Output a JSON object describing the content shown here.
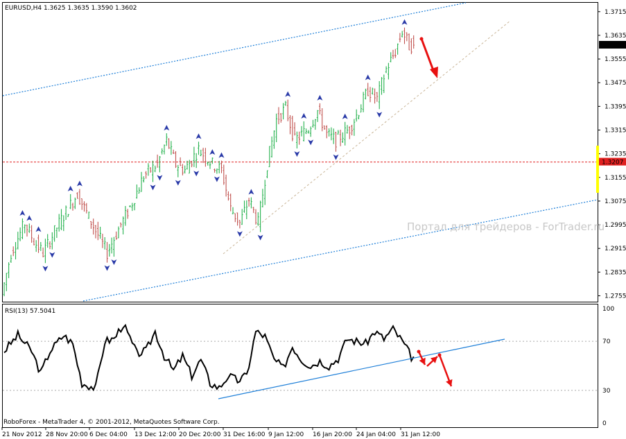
{
  "main_chart": {
    "symbol_info": "EURUSD,H4  1.3625 1.3635 1.3590 1.3602",
    "watermark": "Портал для трейдеров - ForTrader.ru",
    "price_ticks": [
      "1.3715",
      "1.3635",
      "1.3555",
      "1.3475",
      "1.3395",
      "1.3315",
      "1.3235",
      "1.3155",
      "1.3075",
      "1.2995",
      "1.2915",
      "1.2835",
      "1.2755"
    ],
    "current_price_label": "1.3602",
    "level_price_label": "1.3207",
    "colors": {
      "bull_candle": "#22b14c",
      "bear_candle": "#c0504d",
      "fractal": "#2a3aa8",
      "channel": "#1e7fd8",
      "level_line": "#e02020",
      "forecast_arrow": "#e81010",
      "trend_line": "#c8b496",
      "highlight_bar": "#ffff00"
    }
  },
  "rsi_panel": {
    "label": "RSI(13) 57.5041",
    "ticks": [
      "100",
      "70",
      "30",
      "0"
    ],
    "footer": "RoboForex - MetaTrader 4, © 2001-2012, MetaQuotes Software Corp.",
    "colors": {
      "line": "#000000",
      "trend": "#1e7fd8",
      "arrow": "#e81010"
    }
  },
  "time_axis": [
    "21 Nov 2012",
    "28 Nov 20:00",
    "6 Dec 04:00",
    "13 Dec 12:00",
    "20 Dec 20:00",
    "31 Dec 16:00",
    "9 Jan 12:00",
    "16 Jan 20:00",
    "24 Jan 04:00",
    "31 Jan 12:00"
  ],
  "chart_data": [
    {
      "type": "candlestick",
      "title": "EURUSD,H4",
      "ylim": [
        1.2735,
        1.3745
      ],
      "open": 1.3625,
      "high": 1.3635,
      "low": 1.359,
      "close": 1.3602,
      "horizontal_level": 1.3207,
      "current_price": 1.3602,
      "path_anchors": [
        [
          0,
          1.276
        ],
        [
          4,
          1.29
        ],
        [
          10,
          1.3
        ],
        [
          14,
          1.294
        ],
        [
          18,
          1.29
        ],
        [
          25,
          1.3
        ],
        [
          33,
          1.31
        ],
        [
          38,
          1.302
        ],
        [
          42,
          1.296
        ],
        [
          46,
          1.29
        ],
        [
          51,
          1.298
        ],
        [
          57,
          1.307
        ],
        [
          62,
          1.316
        ],
        [
          68,
          1.32
        ],
        [
          72,
          1.328
        ],
        [
          76,
          1.32
        ],
        [
          80,
          1.318
        ],
        [
          86,
          1.325
        ],
        [
          92,
          1.32
        ],
        [
          96,
          1.318
        ],
        [
          100,
          1.305
        ],
        [
          104,
          1.3
        ],
        [
          108,
          1.308
        ],
        [
          112,
          1.3
        ],
        [
          116,
          1.32
        ],
        [
          120,
          1.335
        ],
        [
          124,
          1.339
        ],
        [
          128,
          1.328
        ],
        [
          134,
          1.332
        ],
        [
          138,
          1.338
        ],
        [
          142,
          1.33
        ],
        [
          146,
          1.328
        ],
        [
          152,
          1.332
        ],
        [
          156,
          1.338
        ],
        [
          160,
          1.345
        ],
        [
          164,
          1.342
        ],
        [
          168,
          1.352
        ],
        [
          172,
          1.358
        ],
        [
          175,
          1.365
        ],
        [
          178,
          1.36
        ]
      ]
    },
    {
      "type": "line",
      "title": "RSI(13)",
      "last_value": 57.5041,
      "ylim": [
        0,
        100
      ],
      "levels": [
        30,
        70
      ],
      "x": [
        0,
        6,
        12,
        16,
        20,
        26,
        30,
        34,
        40,
        44,
        48,
        52,
        58,
        62,
        66,
        70,
        74,
        78,
        82,
        86,
        90,
        94,
        98,
        102,
        106,
        110,
        114,
        118,
        122,
        126,
        130,
        134,
        138,
        142,
        146,
        150,
        154,
        158,
        162,
        166,
        170,
        174,
        178
      ],
      "values": [
        62,
        75,
        62,
        44,
        62,
        75,
        68,
        36,
        32,
        70,
        72,
        84,
        60,
        62,
        78,
        58,
        46,
        58,
        42,
        55,
        36,
        32,
        42,
        38,
        42,
        78,
        74,
        55,
        48,
        66,
        55,
        50,
        54,
        50,
        56,
        72,
        70,
        68,
        78,
        72,
        80,
        70,
        57.5
      ]
    }
  ]
}
